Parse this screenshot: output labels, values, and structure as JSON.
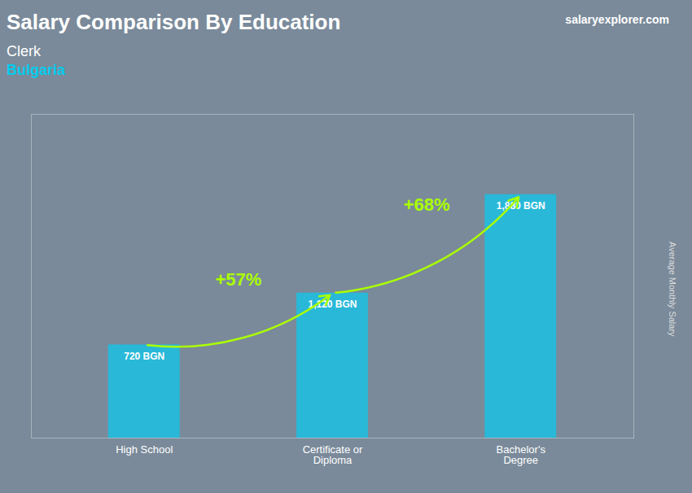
{
  "chart_data": {
    "type": "bar",
    "title": "Salary Comparison By Education",
    "subtitle": [
      "Clerk",
      "Bulgaria"
    ],
    "brand": "salaryexplorer.com",
    "ylabel": "Average Monthly Salary",
    "categories": [
      "High School",
      "Certificate or\nDiploma",
      "Bachelor's\nDegree"
    ],
    "values": [
      720,
      1120,
      1880
    ],
    "value_labels": [
      "720 BGN",
      "1,120 BGN",
      "1,880 BGN"
    ],
    "data_labels": true,
    "annotations": [
      "+57%",
      "+68%"
    ],
    "color": "#29b8d8",
    "ylim": [
      0,
      2500
    ],
    "tick_labels": "x"
  }
}
